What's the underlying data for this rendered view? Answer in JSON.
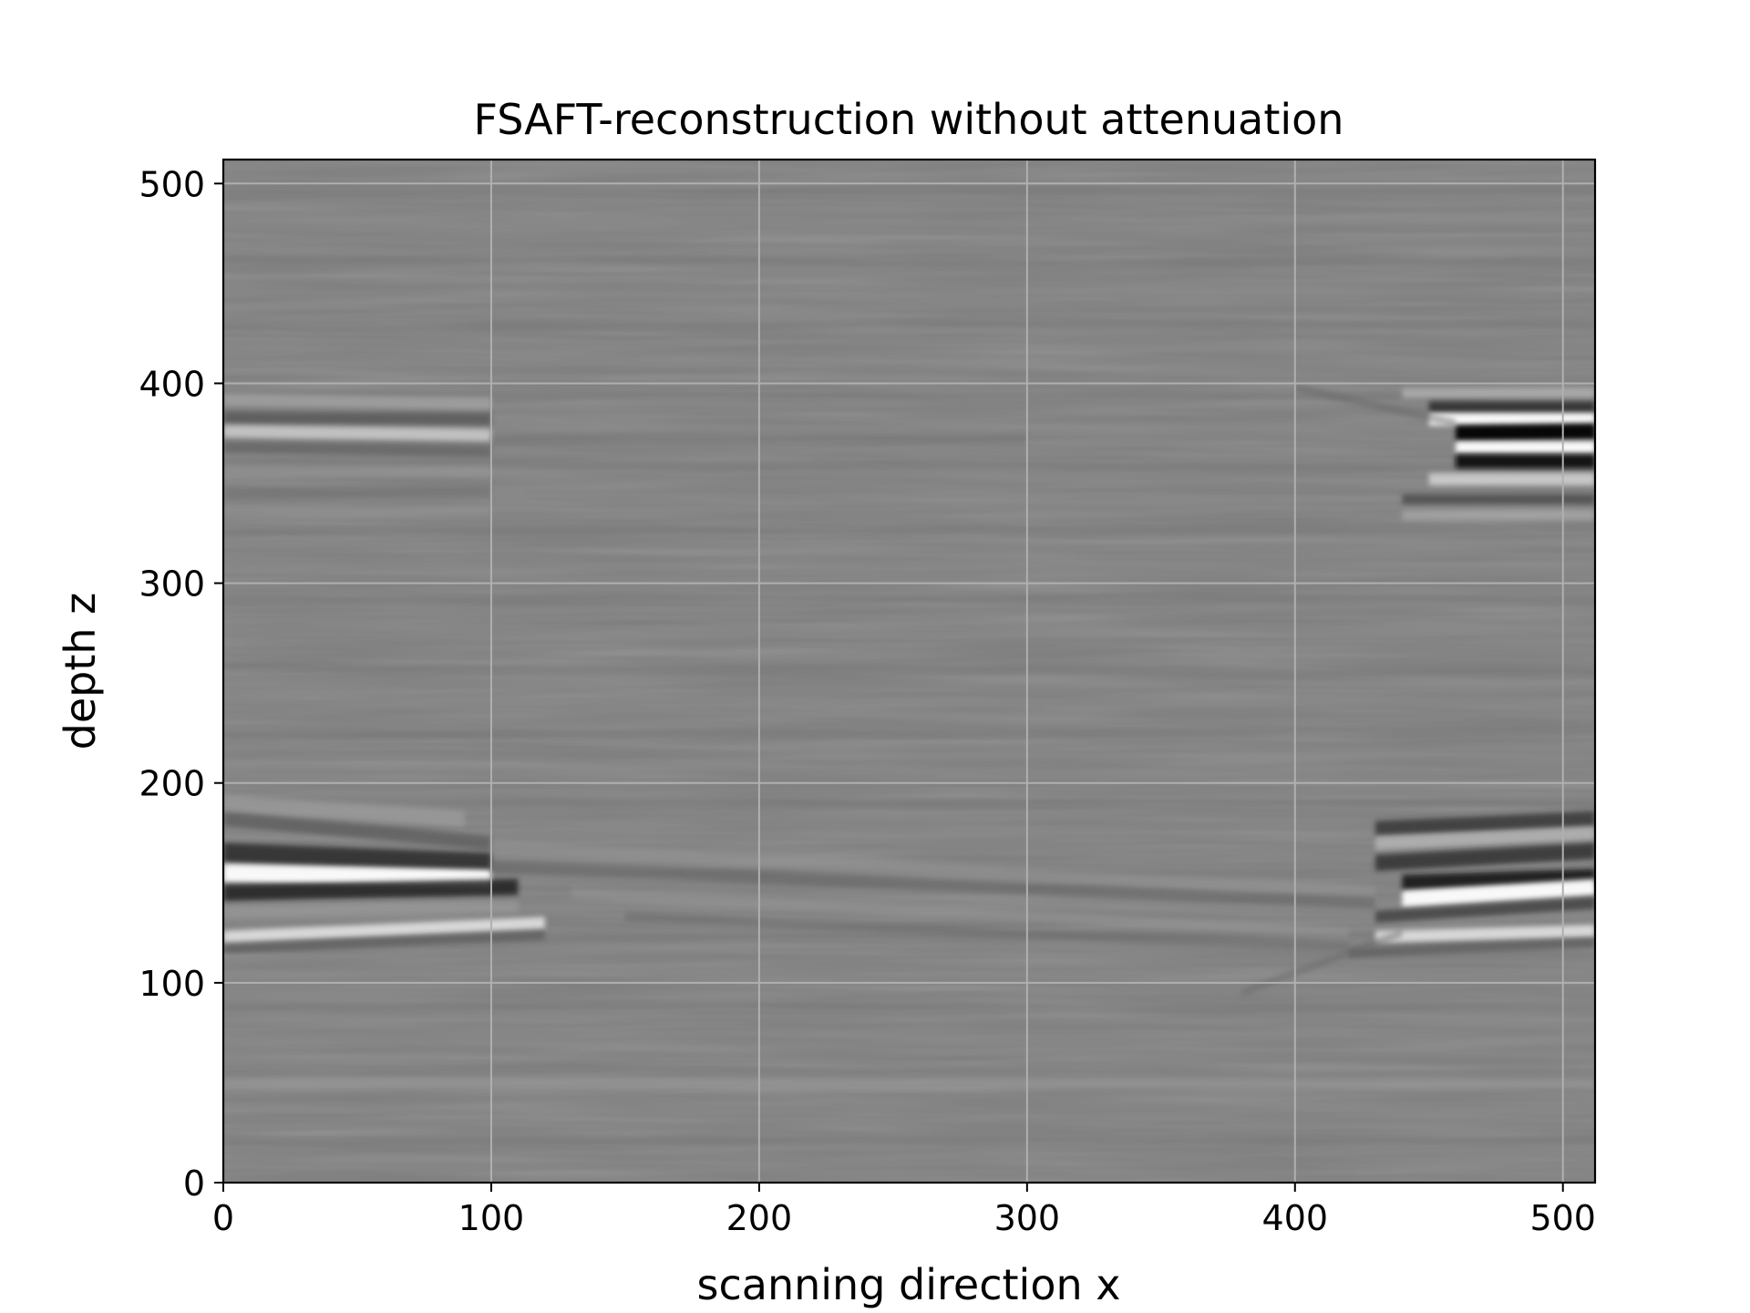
{
  "chart_data": {
    "type": "heatmap",
    "title": "FSAFT-reconstruction without attenuation",
    "xlabel": "scanning direction x",
    "ylabel": "depth z",
    "xlim": [
      0,
      512
    ],
    "ylim": [
      0,
      512
    ],
    "xticks": [
      "0",
      "100",
      "200",
      "300",
      "400",
      "500"
    ],
    "yticks": [
      "0",
      "100",
      "200",
      "300",
      "400",
      "500"
    ],
    "xtick_values": [
      0,
      100,
      200,
      300,
      400,
      500
    ],
    "ytick_values": [
      0,
      100,
      200,
      300,
      400,
      500
    ],
    "grid": true,
    "colormap": "gray",
    "background_value_color": "#7f7f7f",
    "grid_color": "#b0b0b0",
    "features": [
      {
        "name": "left lower reflector",
        "x_range": [
          0,
          100
        ],
        "z_center": 155,
        "z_span": [
          115,
          200
        ],
        "intensity": "strong"
      },
      {
        "name": "left upper reflector",
        "x_range": [
          0,
          100
        ],
        "z_center": 380,
        "z_span": [
          330,
          400
        ],
        "intensity": "medium"
      },
      {
        "name": "right lower reflector",
        "x_range": [
          420,
          512
        ],
        "z_center": 150,
        "z_span": [
          115,
          185
        ],
        "intensity": "strong"
      },
      {
        "name": "right upper reflector",
        "x_range": [
          420,
          512
        ],
        "z_center": 375,
        "z_span": [
          330,
          400
        ],
        "intensity": "strongest"
      },
      {
        "name": "faint horizontal band",
        "x_range": [
          0,
          512
        ],
        "z_center": 50,
        "z_span": [
          40,
          60
        ],
        "intensity": "faint"
      }
    ]
  }
}
